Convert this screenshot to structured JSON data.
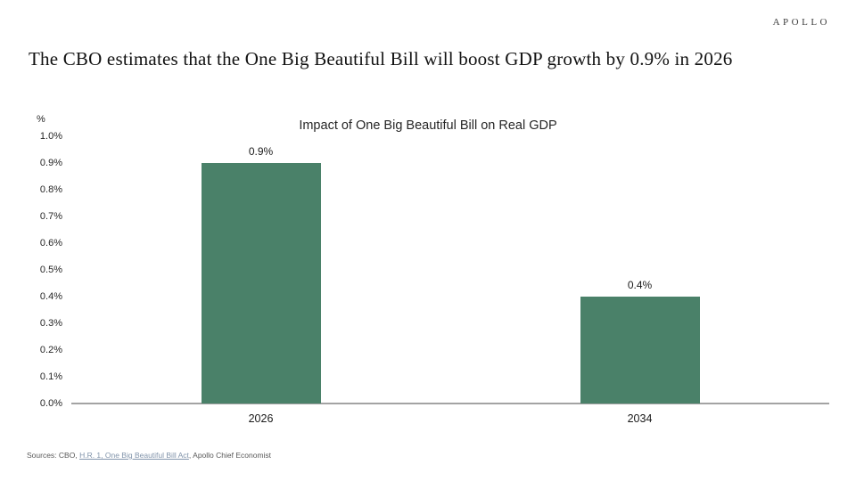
{
  "brand": {
    "logo_text": "APOLLO"
  },
  "headline": "The CBO estimates that the One Big Beautiful Bill will boost GDP growth by 0.9% in 2026",
  "chart_data": {
    "type": "bar",
    "title": "Impact of One Big Beautiful Bill on Real GDP",
    "unit_label": "%",
    "categories": [
      "2026",
      "2034"
    ],
    "values": [
      0.9,
      0.4
    ],
    "data_labels": [
      "0.9%",
      "0.4%"
    ],
    "ylim": [
      0,
      1.0
    ],
    "yticks": [
      {
        "value": 0.0,
        "label": "0.0%"
      },
      {
        "value": 0.1,
        "label": "0.1%"
      },
      {
        "value": 0.2,
        "label": "0.2%"
      },
      {
        "value": 0.3,
        "label": "0.3%"
      },
      {
        "value": 0.4,
        "label": "0.4%"
      },
      {
        "value": 0.5,
        "label": "0.5%"
      },
      {
        "value": 0.6,
        "label": "0.6%"
      },
      {
        "value": 0.7,
        "label": "0.7%"
      },
      {
        "value": 0.8,
        "label": "0.8%"
      },
      {
        "value": 0.9,
        "label": "0.9%"
      },
      {
        "value": 1.0,
        "label": "1.0%"
      }
    ],
    "bar_color": "#4a8169",
    "axis_color": "#a3a3a3",
    "grid": false,
    "legend": false
  },
  "footer": {
    "source_prefix": "Sources: CBO, ",
    "source_link": "H.R. 1, One Big Beautiful Bill Act",
    "source_suffix": ", Apollo Chief Economist"
  }
}
